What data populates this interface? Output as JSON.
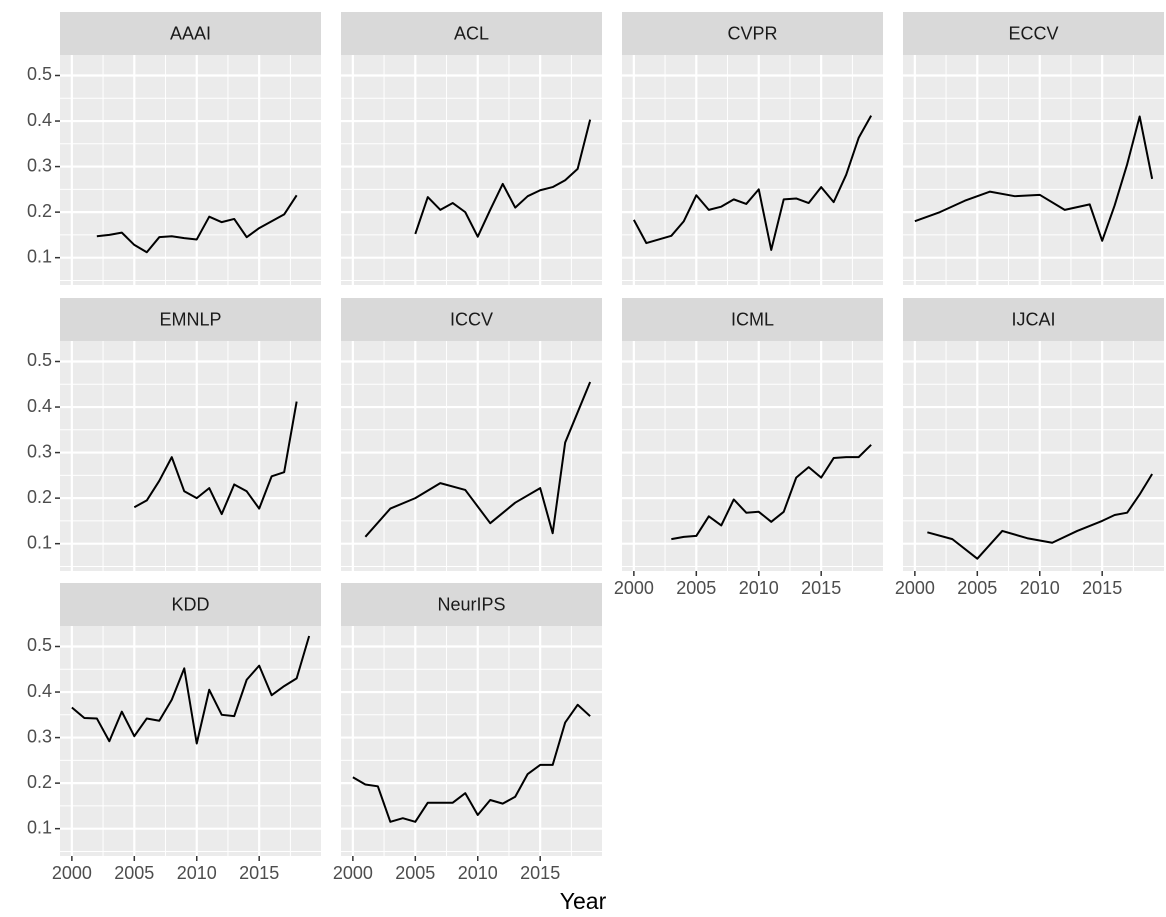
{
  "chart_data": {
    "type": "line",
    "xlabel": "Year",
    "xlim": [
      1999.05,
      2019.95
    ],
    "ylim": [
      0.04,
      0.545
    ],
    "xticks": [
      2000,
      2005,
      2010,
      2015
    ],
    "yticks": [
      0.1,
      0.2,
      0.3,
      0.4,
      0.5
    ],
    "xminorticks": [
      2002.5,
      2007.5,
      2012.5,
      2017.5
    ],
    "yminorticks": [
      0.05,
      0.15,
      0.25,
      0.35,
      0.45
    ],
    "grid": true,
    "color": "#000000",
    "facets": [
      {
        "title": "AAAI",
        "x": [
          2002,
          2003,
          2004,
          2005,
          2006,
          2007,
          2008,
          2009,
          2010,
          2011,
          2012,
          2013,
          2014,
          2015,
          2016,
          2017,
          2018
        ],
        "values": [
          0.147,
          0.15,
          0.155,
          0.128,
          0.112,
          0.145,
          0.147,
          0.143,
          0.14,
          0.19,
          0.178,
          0.185,
          0.145,
          0.165,
          0.18,
          0.195,
          0.237
        ]
      },
      {
        "title": "ACL",
        "x": [
          2005,
          2006,
          2007,
          2008,
          2009,
          2010,
          2011,
          2012,
          2013,
          2014,
          2015,
          2016,
          2017,
          2018,
          2019
        ],
        "values": [
          0.152,
          0.233,
          0.205,
          0.22,
          0.2,
          0.146,
          0.205,
          0.262,
          0.21,
          0.235,
          0.248,
          0.255,
          0.27,
          0.295,
          0.403
        ]
      },
      {
        "title": "CVPR",
        "x": [
          2000,
          2001,
          2002,
          2003,
          2004,
          2005,
          2006,
          2007,
          2008,
          2009,
          2010,
          2011,
          2012,
          2013,
          2014,
          2015,
          2016,
          2017,
          2018,
          2019
        ],
        "values": [
          0.183,
          0.132,
          0.14,
          0.148,
          0.18,
          0.237,
          0.205,
          0.212,
          0.228,
          0.218,
          0.25,
          0.117,
          0.228,
          0.23,
          0.22,
          0.255,
          0.222,
          0.282,
          0.363,
          0.412
        ]
      },
      {
        "title": "ECCV",
        "x": [
          2000,
          2002,
          2004,
          2006,
          2008,
          2010,
          2012,
          2014,
          2015,
          2016,
          2017,
          2018,
          2019
        ],
        "values": [
          0.18,
          0.2,
          0.225,
          0.245,
          0.235,
          0.238,
          0.205,
          0.217,
          0.137,
          0.215,
          0.305,
          0.41,
          0.273
        ]
      },
      {
        "title": "EMNLP",
        "x": [
          2005,
          2006,
          2007,
          2008,
          2009,
          2010,
          2011,
          2012,
          2013,
          2014,
          2015,
          2016,
          2017,
          2018
        ],
        "values": [
          0.18,
          0.195,
          0.238,
          0.29,
          0.215,
          0.2,
          0.222,
          0.165,
          0.23,
          0.215,
          0.177,
          0.248,
          0.257,
          0.412
        ]
      },
      {
        "title": "ICCV",
        "x": [
          2001,
          2003,
          2005,
          2007,
          2009,
          2011,
          2013,
          2015,
          2016,
          2017,
          2019
        ],
        "values": [
          0.115,
          0.177,
          0.2,
          0.233,
          0.218,
          0.145,
          0.19,
          0.222,
          0.123,
          0.322,
          0.455
        ]
      },
      {
        "title": "ICML",
        "x": [
          2003,
          2004,
          2005,
          2006,
          2007,
          2008,
          2009,
          2010,
          2011,
          2012,
          2013,
          2014,
          2015,
          2016,
          2017,
          2018,
          2019
        ],
        "values": [
          0.11,
          0.115,
          0.117,
          0.16,
          0.14,
          0.197,
          0.168,
          0.17,
          0.148,
          0.17,
          0.245,
          0.268,
          0.245,
          0.288,
          0.29,
          0.29,
          0.317
        ]
      },
      {
        "title": "IJCAI",
        "x": [
          2001,
          2003,
          2005,
          2007,
          2009,
          2011,
          2013,
          2015,
          2016,
          2017,
          2018,
          2019
        ],
        "values": [
          0.125,
          0.11,
          0.067,
          0.128,
          0.112,
          0.102,
          0.128,
          0.15,
          0.163,
          0.168,
          0.208,
          0.253
        ]
      },
      {
        "title": "KDD",
        "x": [
          2000,
          2001,
          2002,
          2003,
          2004,
          2005,
          2006,
          2007,
          2008,
          2009,
          2010,
          2011,
          2012,
          2013,
          2014,
          2015,
          2016,
          2017,
          2018,
          2019
        ],
        "values": [
          0.366,
          0.343,
          0.342,
          0.292,
          0.357,
          0.303,
          0.342,
          0.337,
          0.383,
          0.452,
          0.287,
          0.405,
          0.35,
          0.347,
          0.427,
          0.458,
          0.393,
          0.413,
          0.43,
          0.523
        ]
      },
      {
        "title": "NeurIPS",
        "x": [
          2000,
          2001,
          2002,
          2003,
          2004,
          2005,
          2006,
          2007,
          2008,
          2009,
          2010,
          2011,
          2012,
          2013,
          2014,
          2015,
          2016,
          2017,
          2018,
          2019
        ],
        "values": [
          0.213,
          0.197,
          0.193,
          0.115,
          0.123,
          0.115,
          0.157,
          0.157,
          0.157,
          0.178,
          0.13,
          0.163,
          0.155,
          0.17,
          0.22,
          0.24,
          0.24,
          0.333,
          0.372,
          0.347
        ]
      }
    ]
  }
}
